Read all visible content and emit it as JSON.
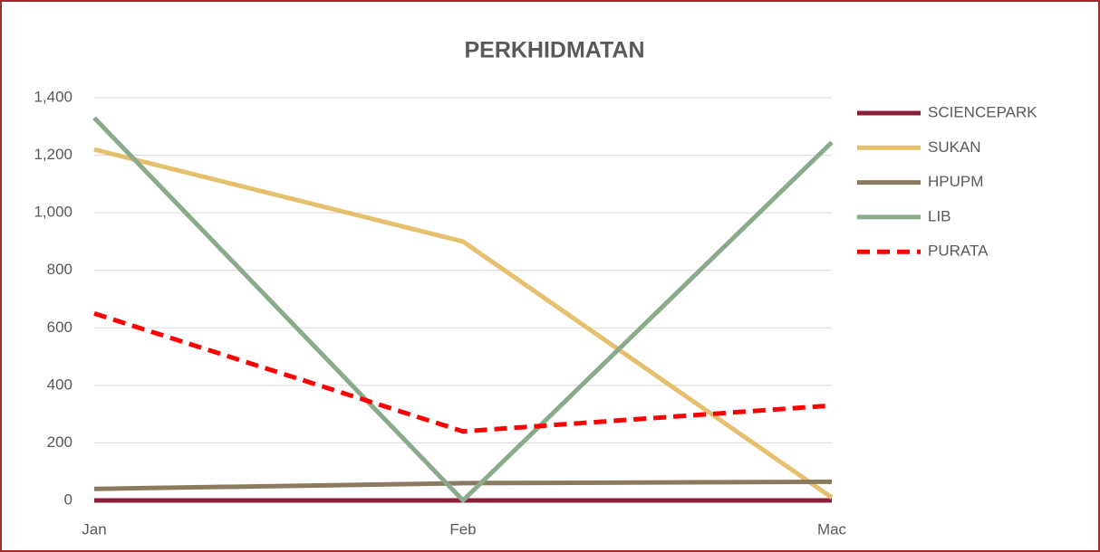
{
  "chart_data": {
    "type": "line",
    "title": "PERKHIDMATAN",
    "categories": [
      "Jan",
      "Feb",
      "Mac"
    ],
    "series": [
      {
        "name": "SCIENCEPARK",
        "color": "#8e1f3a",
        "values": [
          0,
          0,
          0
        ]
      },
      {
        "name": "SUKAN",
        "color": "#e6c06e",
        "values": [
          1220,
          900,
          10
        ]
      },
      {
        "name": "HPUPM",
        "color": "#8b7b5e",
        "values": [
          40,
          60,
          65
        ]
      },
      {
        "name": "LIB",
        "color": "#8aab8a",
        "values": [
          1330,
          0,
          1245
        ]
      },
      {
        "name": "PURATA",
        "color": "#ff0000",
        "values": [
          650,
          240,
          330
        ],
        "dash": true
      }
    ],
    "ylim": [
      0,
      1400
    ],
    "yticks": [
      0,
      200,
      400,
      600,
      800,
      {
        "value": 1000,
        "label": "1,000"
      },
      {
        "value": 1200,
        "label": "1,200"
      },
      {
        "value": 1400,
        "label": "1,400"
      }
    ],
    "grid": true,
    "legend": "right"
  }
}
